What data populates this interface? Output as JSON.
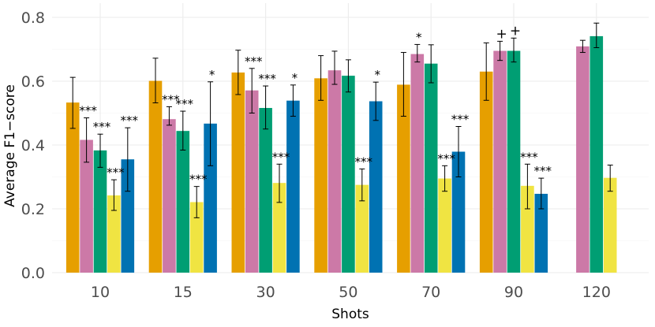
{
  "chart_data": {
    "type": "bar",
    "xlabel": "Shots",
    "ylabel": "Average F1−score",
    "ylim": [
      0,
      0.8
    ],
    "yticks": [
      "0.0",
      "0.2",
      "0.4",
      "0.6",
      "0.8"
    ],
    "grid": true,
    "categories": [
      "10",
      "15",
      "30",
      "50",
      "70",
      "90",
      "120"
    ],
    "series": [
      {
        "color": "#E69F00",
        "values": [
          0.533,
          0.601,
          0.627,
          0.609,
          0.589,
          0.63,
          null
        ],
        "err_low": [
          0.452,
          0.532,
          0.558,
          0.54,
          0.49,
          0.54,
          null
        ],
        "err_high": [
          0.612,
          0.672,
          0.697,
          0.68,
          0.69,
          0.72,
          null
        ],
        "annotations": [
          "",
          "",
          "",
          "",
          "",
          "",
          ""
        ]
      },
      {
        "color": "#CC79A7",
        "values": [
          0.416,
          0.481,
          0.571,
          0.634,
          0.685,
          0.695,
          0.709
        ],
        "err_low": [
          0.346,
          0.462,
          0.5,
          0.59,
          0.66,
          0.665,
          0.69
        ],
        "err_high": [
          0.485,
          0.52,
          0.64,
          0.694,
          0.715,
          0.725,
          0.728
        ],
        "annotations": [
          "***",
          "***",
          "***",
          "",
          "*",
          "+",
          ""
        ]
      },
      {
        "color": "#009E73",
        "values": [
          0.383,
          0.444,
          0.516,
          0.617,
          0.655,
          0.695,
          0.741
        ],
        "err_low": [
          0.33,
          0.384,
          0.45,
          0.566,
          0.595,
          0.66,
          0.705
        ],
        "err_high": [
          0.434,
          0.506,
          0.585,
          0.667,
          0.714,
          0.735,
          0.782
        ],
        "annotations": [
          "***",
          "***",
          "***",
          "",
          "",
          "+",
          ""
        ]
      },
      {
        "color": "#F0E442",
        "values": [
          0.242,
          0.221,
          0.281,
          0.275,
          0.295,
          0.272,
          0.297
        ],
        "err_low": [
          0.195,
          0.172,
          0.22,
          0.225,
          0.255,
          0.2,
          0.255
        ],
        "err_high": [
          0.291,
          0.27,
          0.34,
          0.325,
          0.335,
          0.34,
          0.337
        ],
        "annotations": [
          "***",
          "***",
          "***",
          "***",
          "***",
          "***",
          ""
        ]
      },
      {
        "color": "#0072B2",
        "values": [
          0.355,
          0.467,
          0.539,
          0.537,
          0.379,
          0.247,
          null
        ],
        "err_low": [
          0.255,
          0.335,
          0.49,
          0.477,
          0.3,
          0.2,
          null
        ],
        "err_high": [
          0.454,
          0.598,
          0.588,
          0.597,
          0.458,
          0.296,
          null
        ],
        "annotations": [
          "***",
          "*",
          "*",
          "*",
          "***",
          "***",
          ""
        ]
      }
    ]
  }
}
